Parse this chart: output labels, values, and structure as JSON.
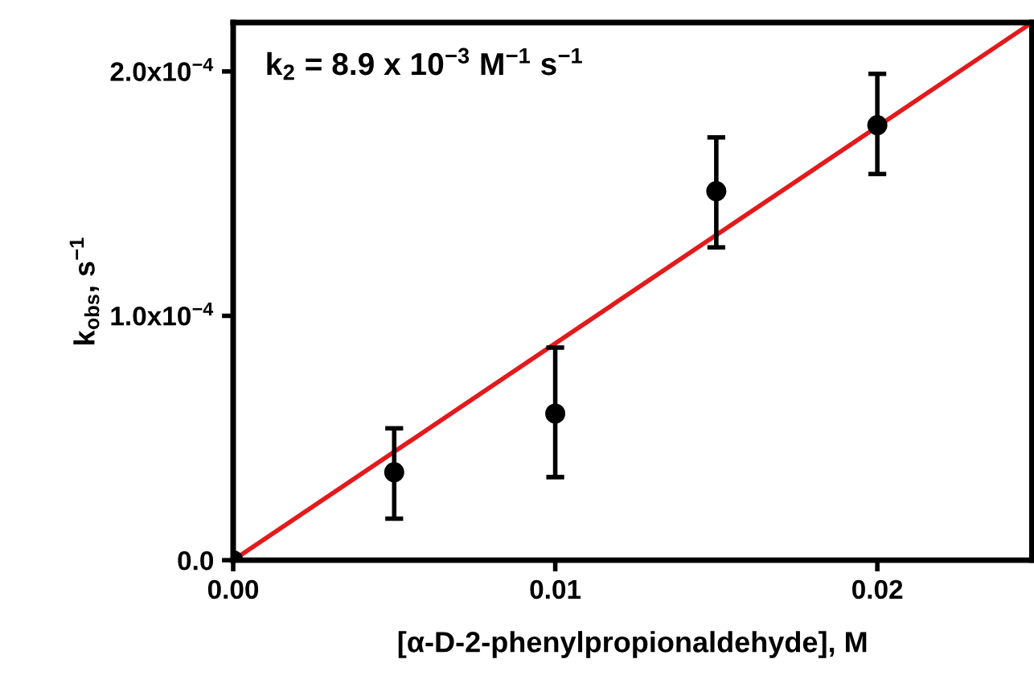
{
  "chart_data": {
    "type": "scatter",
    "xlabel": "[α-D-2-phenylpropionaldehyde], M",
    "ylabel": "k$_{obs}$, s$^{−1}$",
    "annotations": [
      "k$_{2}$ = 8.9 x 10$^{−3}$ M$^{−1}$ s$^{−1}$"
    ],
    "x": [
      0,
      0.005,
      0.01,
      0.015,
      0.02
    ],
    "series": [
      {
        "color": "#000000",
        "marker": "circle",
        "values": [
          0,
          3.6e-05,
          6e-05,
          0.000151,
          0.000178
        ],
        "errors": [
          null,
          [
            1.7e-05,
            5.4e-05
          ],
          [
            3.4e-05,
            8.7e-05
          ],
          [
            0.000128,
            0.000173
          ],
          [
            0.000158,
            0.000199
          ]
        ]
      },
      {
        "type": "line",
        "color": "#e31a1c",
        "marker": "none",
        "x": [
          0,
          0.0248
        ],
        "values": [
          0,
          0.00022
        ]
      }
    ],
    "xlim": [
      0,
      0.0248
    ],
    "ylim": [
      0,
      0.00022
    ],
    "xticks": [
      {
        "value": 0,
        "label": "0.00"
      },
      0.01,
      0.02
    ],
    "yticks": [
      {
        "value": 0,
        "label": "0.0"
      },
      {
        "value": 0.0001,
        "label": "1.0x10$^{−4}$"
      },
      {
        "value": 0.0002,
        "label": "2.0x10$^{−4}$"
      }
    ],
    "grid": false,
    "legend": false
  }
}
